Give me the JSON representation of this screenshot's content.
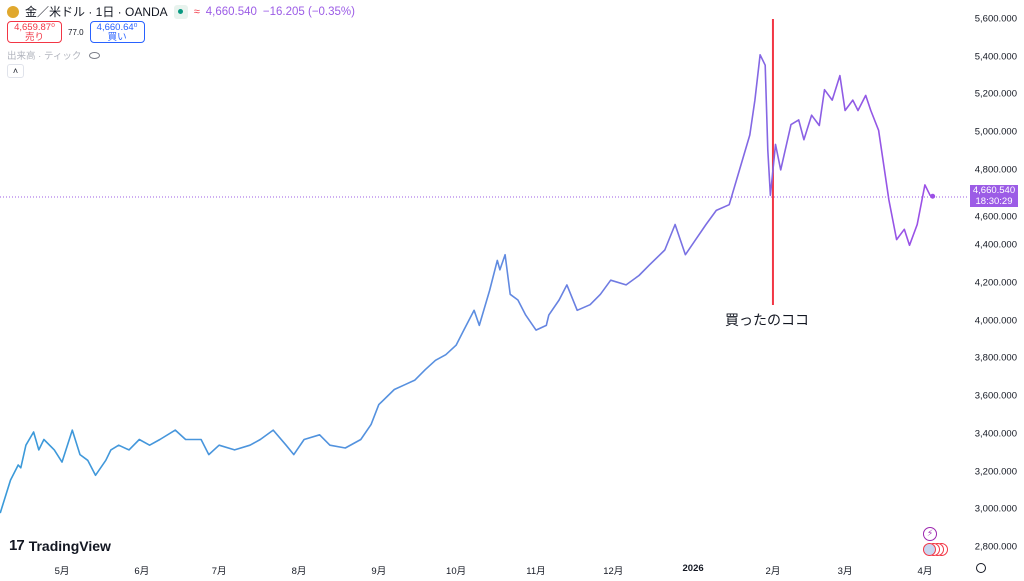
{
  "header": {
    "symbol": "金／米ドル · 1日 · OANDA",
    "approx": "≈",
    "last": "4,660.540",
    "change": "−16.205 (−0.35%)"
  },
  "trade": {
    "sell_price": "4,659.87⁰",
    "sell_label": "売り",
    "spread": "77.0",
    "buy_price": "4,660.64⁰",
    "buy_label": "買い"
  },
  "volume_label": "出来高 · ティック",
  "collapse": "˄",
  "price_label": {
    "price": "4,660.540",
    "time": "18:30:29"
  },
  "annotation": "買ったのココ",
  "brand": "TradingView",
  "colors": {
    "start": "#3a9ad9",
    "end": "#9c4fe6",
    "marker": "#f23645",
    "label": "#9c5ce6"
  },
  "chart_data": {
    "type": "line",
    "x_unit": "days since 2025-04-01",
    "ylim": [
      2800,
      5600
    ],
    "xlim": [
      6,
      375
    ],
    "y_ticks": [
      "5,600.000",
      "5,400.000",
      "5,200.000",
      "5,000.000",
      "4,800.000",
      "4,600.000",
      "4,400.000",
      "4,200.000",
      "4,000.000",
      "3,800.000",
      "3,600.000",
      "3,400.000",
      "3,200.000",
      "3,000.000",
      "2,800.000"
    ],
    "y_tick_values": [
      5600,
      5400,
      5200,
      5000,
      4800,
      4600,
      4400,
      4200,
      4000,
      3800,
      3600,
      3400,
      3200,
      3000,
      2800
    ],
    "x_ticks": [
      {
        "label": "5月",
        "d": 30
      },
      {
        "label": "6月",
        "d": 61
      },
      {
        "label": "7月",
        "d": 91
      },
      {
        "label": "8月",
        "d": 122
      },
      {
        "label": "9月",
        "d": 153
      },
      {
        "label": "10月",
        "d": 183
      },
      {
        "label": "11月",
        "d": 214
      },
      {
        "label": "12月",
        "d": 244
      },
      {
        "label": "2026",
        "d": 275,
        "bold": true
      },
      {
        "label": "2月",
        "d": 306
      },
      {
        "label": "3月",
        "d": 334
      },
      {
        "label": "4月",
        "d": 365
      }
    ],
    "marker_d": 306,
    "current": 4660.54,
    "points": [
      [
        6,
        2980
      ],
      [
        10,
        3155
      ],
      [
        13,
        3235
      ],
      [
        14,
        3220
      ],
      [
        16,
        3340
      ],
      [
        19,
        3410
      ],
      [
        21,
        3315
      ],
      [
        23,
        3370
      ],
      [
        27,
        3315
      ],
      [
        30,
        3250
      ],
      [
        34,
        3420
      ],
      [
        37,
        3290
      ],
      [
        40,
        3260
      ],
      [
        43,
        3180
      ],
      [
        47,
        3260
      ],
      [
        49,
        3315
      ],
      [
        52,
        3340
      ],
      [
        56,
        3315
      ],
      [
        60,
        3370
      ],
      [
        64,
        3340
      ],
      [
        68,
        3370
      ],
      [
        74,
        3420
      ],
      [
        78,
        3370
      ],
      [
        84,
        3370
      ],
      [
        87,
        3290
      ],
      [
        91,
        3340
      ],
      [
        97,
        3315
      ],
      [
        103,
        3340
      ],
      [
        107,
        3370
      ],
      [
        112,
        3420
      ],
      [
        117,
        3340
      ],
      [
        120,
        3290
      ],
      [
        124,
        3370
      ],
      [
        130,
        3395
      ],
      [
        134,
        3340
      ],
      [
        140,
        3325
      ],
      [
        146,
        3370
      ],
      [
        150,
        3450
      ],
      [
        153,
        3555
      ],
      [
        159,
        3635
      ],
      [
        163,
        3660
      ],
      [
        167,
        3685
      ],
      [
        171,
        3740
      ],
      [
        175,
        3790
      ],
      [
        179,
        3820
      ],
      [
        183,
        3870
      ],
      [
        186,
        3950
      ],
      [
        190,
        4055
      ],
      [
        192,
        3975
      ],
      [
        196,
        4160
      ],
      [
        199,
        4320
      ],
      [
        200,
        4270
      ],
      [
        202,
        4350
      ],
      [
        204,
        4140
      ],
      [
        207,
        4110
      ],
      [
        210,
        4030
      ],
      [
        214,
        3950
      ],
      [
        218,
        3975
      ],
      [
        219,
        4030
      ],
      [
        223,
        4110
      ],
      [
        226,
        4190
      ],
      [
        230,
        4055
      ],
      [
        235,
        4085
      ],
      [
        239,
        4140
      ],
      [
        243,
        4215
      ],
      [
        249,
        4190
      ],
      [
        254,
        4240
      ],
      [
        258,
        4295
      ],
      [
        264,
        4375
      ],
      [
        268,
        4510
      ],
      [
        272,
        4350
      ],
      [
        276,
        4430
      ],
      [
        280,
        4510
      ],
      [
        284,
        4585
      ],
      [
        289,
        4615
      ],
      [
        293,
        4800
      ],
      [
        297,
        4985
      ],
      [
        299,
        5170
      ],
      [
        301,
        5410
      ],
      [
        303,
        5355
      ],
      [
        304,
        4905
      ],
      [
        305,
        4665
      ],
      [
        307,
        4935
      ],
      [
        309,
        4800
      ],
      [
        313,
        5040
      ],
      [
        316,
        5065
      ],
      [
        318,
        4960
      ],
      [
        321,
        5090
      ],
      [
        324,
        5035
      ],
      [
        326,
        5225
      ],
      [
        329,
        5170
      ],
      [
        332,
        5300
      ],
      [
        334,
        5115
      ],
      [
        337,
        5170
      ],
      [
        339,
        5115
      ],
      [
        342,
        5195
      ],
      [
        344,
        5115
      ],
      [
        347,
        5010
      ],
      [
        351,
        4640
      ],
      [
        354,
        4430
      ],
      [
        357,
        4485
      ],
      [
        359,
        4400
      ],
      [
        362,
        4510
      ],
      [
        365,
        4720
      ],
      [
        367,
        4665
      ],
      [
        368,
        4660
      ]
    ]
  }
}
